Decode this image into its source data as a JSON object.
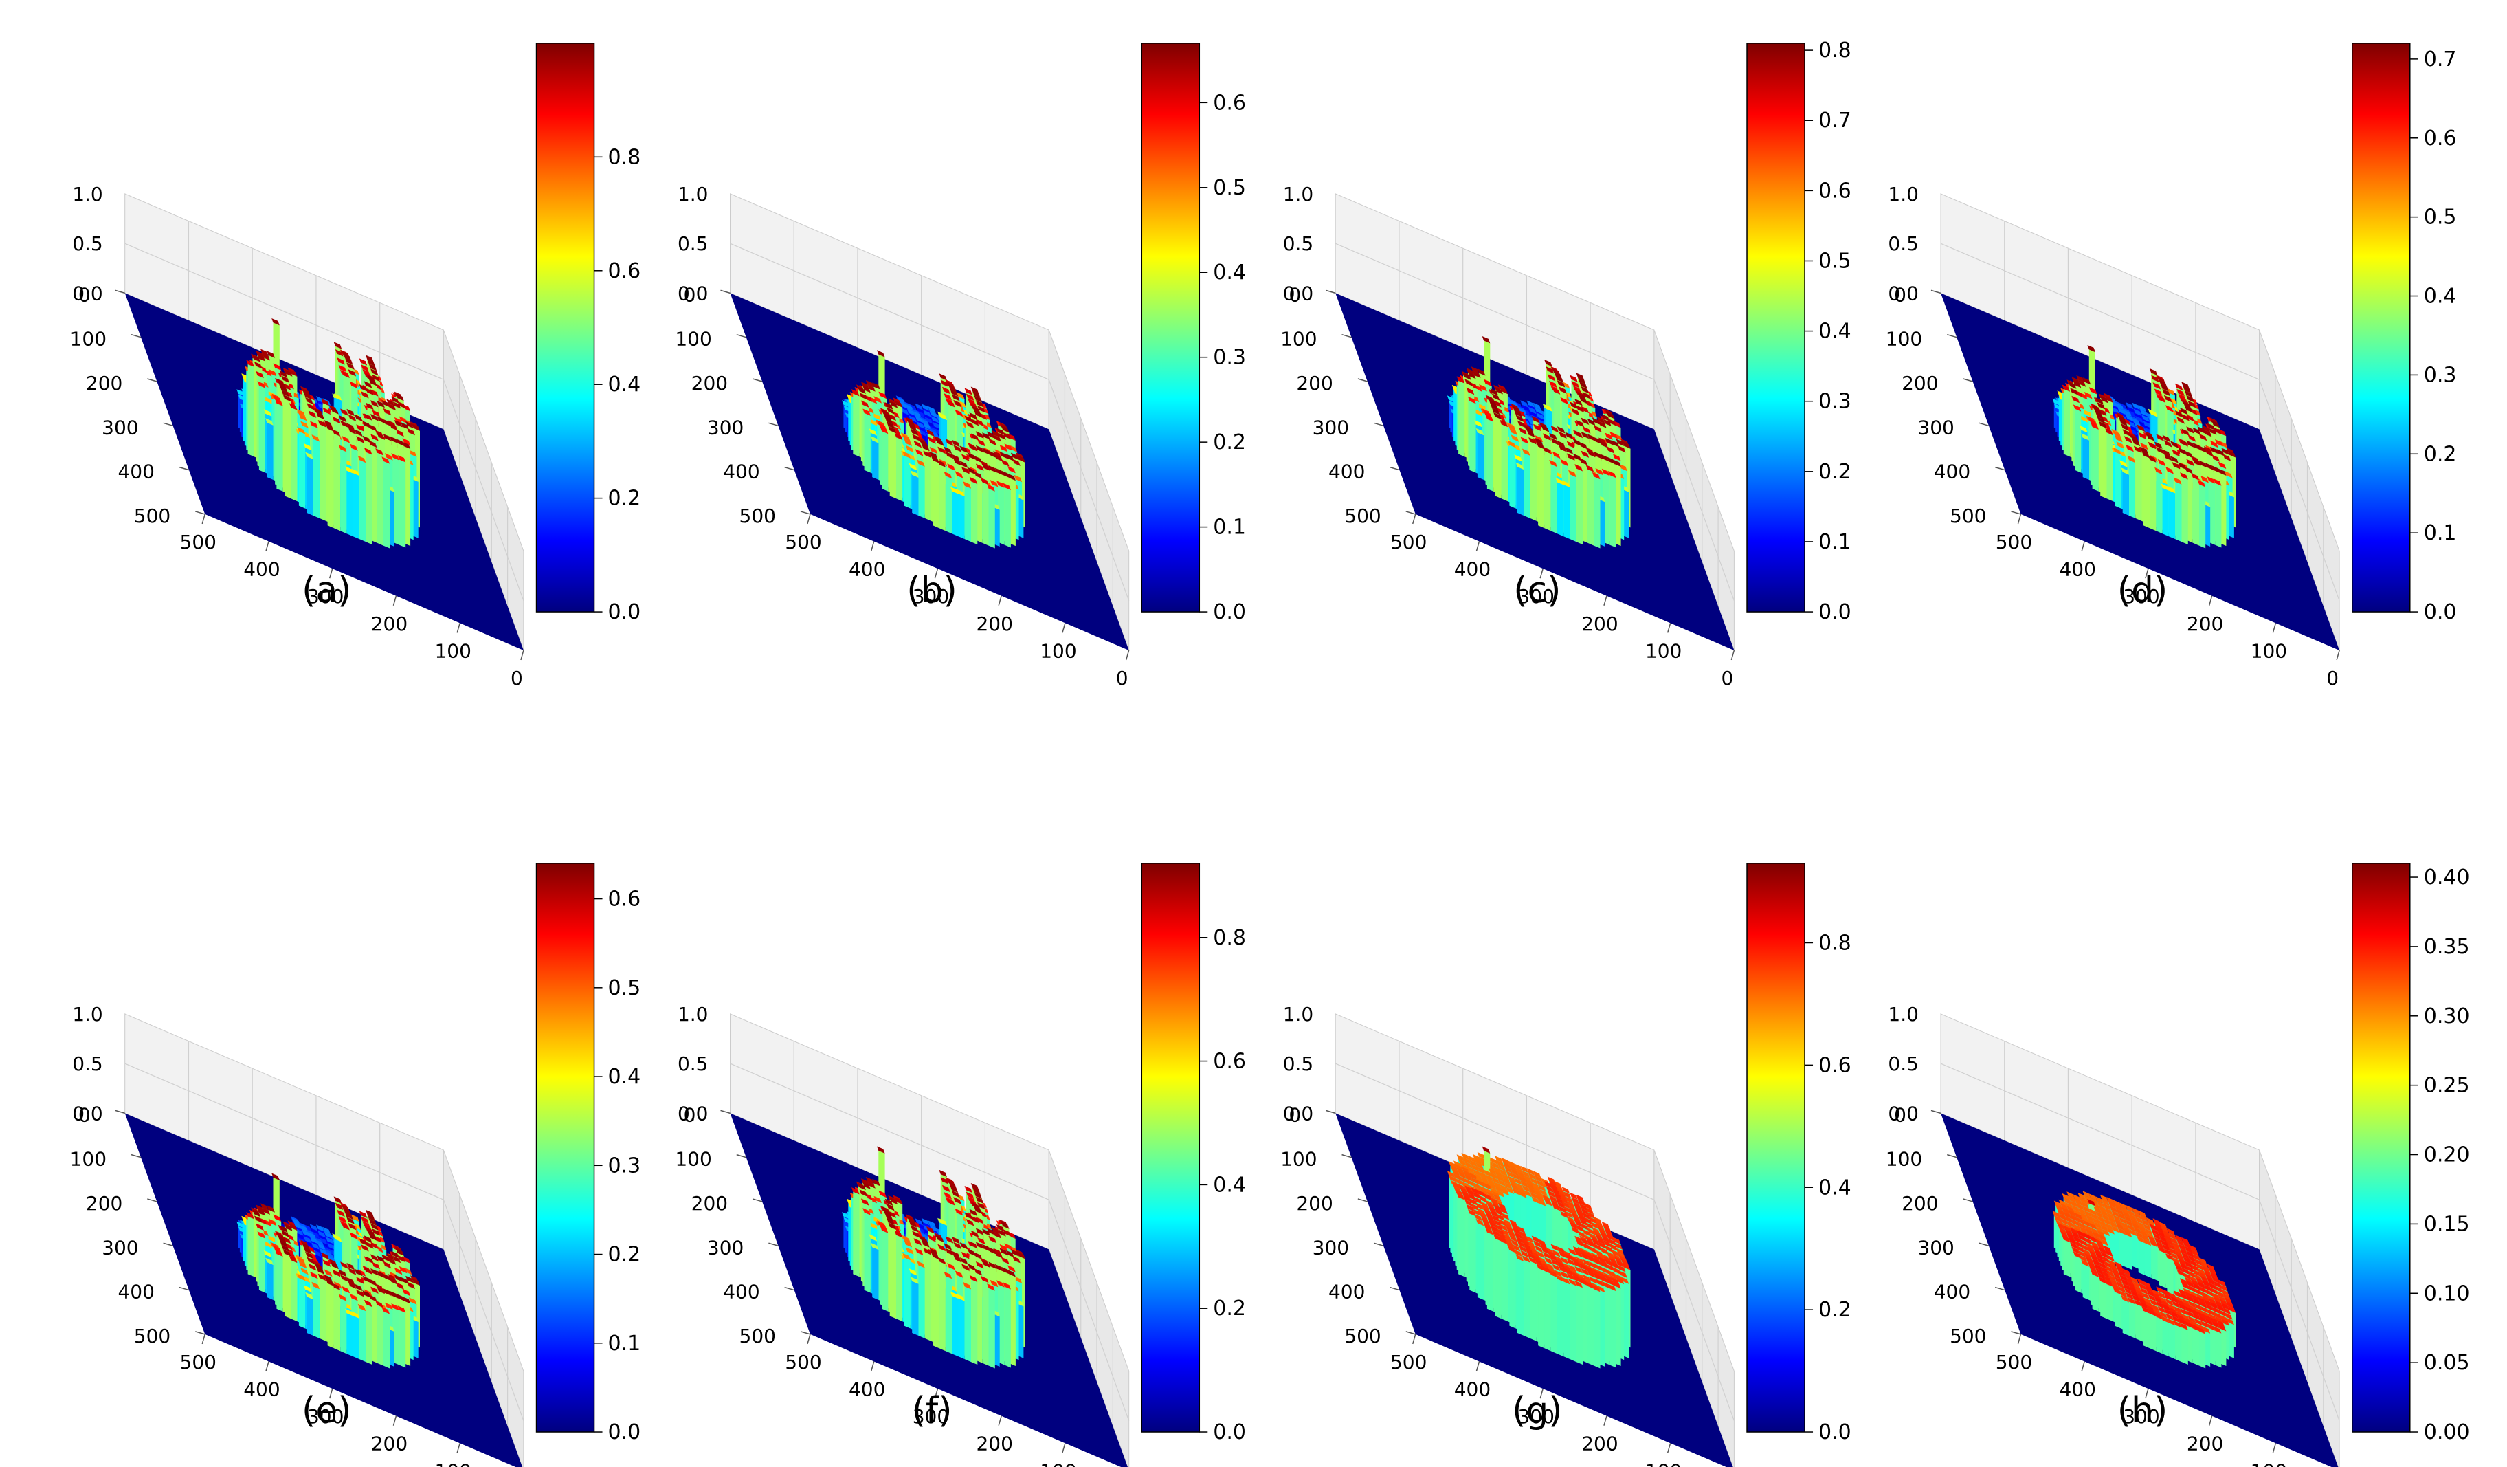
{
  "colormap": {
    "name": "jet",
    "stops": [
      "#00007f",
      "#0000ff",
      "#007fff",
      "#00ffff",
      "#7fff7f",
      "#ffff00",
      "#ff7f00",
      "#ff0000",
      "#7f0000"
    ]
  },
  "colors": {
    "floor": "#00007f",
    "pane": "#f2f2f2",
    "grid": "#d0d0d0"
  },
  "axis_ticks": {
    "z": [
      "0.0",
      "0.5",
      "1.0"
    ],
    "x": [
      "0",
      "100",
      "200",
      "300",
      "400",
      "500"
    ],
    "y": [
      "0",
      "100",
      "200",
      "300",
      "400",
      "500"
    ]
  },
  "chart_data": [
    {
      "panel": "a",
      "label": "(a)",
      "type": "surface3d",
      "row": 0,
      "col": 0,
      "xlim": [
        0,
        500
      ],
      "ylim": [
        0,
        500
      ],
      "zlim": [
        0.0,
        1.0
      ],
      "surface_max": 1.0,
      "surface_peak": 0.98,
      "plateau": false,
      "ring": true,
      "colorbar": {
        "min": 0.0,
        "max": 1.0,
        "ticks": [
          "0.0",
          "0.2",
          "0.4",
          "0.6",
          "0.8"
        ],
        "tick_values": [
          0.0,
          0.2,
          0.4,
          0.6,
          0.8
        ]
      }
    },
    {
      "panel": "b",
      "label": "(b)",
      "type": "surface3d",
      "row": 0,
      "col": 1,
      "xlim": [
        0,
        500
      ],
      "ylim": [
        0,
        500
      ],
      "zlim": [
        0.0,
        1.0
      ],
      "surface_max": 0.67,
      "surface_peak": 0.66,
      "plateau": false,
      "ring": true,
      "colorbar": {
        "min": 0.0,
        "max": 0.67,
        "ticks": [
          "0.0",
          "0.1",
          "0.2",
          "0.3",
          "0.4",
          "0.5",
          "0.6"
        ],
        "tick_values": [
          0.0,
          0.1,
          0.2,
          0.3,
          0.4,
          0.5,
          0.6
        ]
      }
    },
    {
      "panel": "c",
      "label": "(c)",
      "type": "surface3d",
      "row": 0,
      "col": 2,
      "xlim": [
        0,
        500
      ],
      "ylim": [
        0,
        500
      ],
      "zlim": [
        0.0,
        1.0
      ],
      "surface_max": 0.81,
      "surface_peak": 0.8,
      "plateau": false,
      "ring": true,
      "colorbar": {
        "min": 0.0,
        "max": 0.81,
        "ticks": [
          "0.0",
          "0.1",
          "0.2",
          "0.3",
          "0.4",
          "0.5",
          "0.6",
          "0.7",
          "0.8"
        ],
        "tick_values": [
          0.0,
          0.1,
          0.2,
          0.3,
          0.4,
          0.5,
          0.6,
          0.7,
          0.8
        ]
      }
    },
    {
      "panel": "d",
      "label": "(d)",
      "type": "surface3d",
      "row": 0,
      "col": 3,
      "xlim": [
        0,
        500
      ],
      "ylim": [
        0,
        500
      ],
      "zlim": [
        0.0,
        1.0
      ],
      "surface_max": 0.72,
      "surface_peak": 0.71,
      "plateau": false,
      "ring": true,
      "colorbar": {
        "min": 0.0,
        "max": 0.72,
        "ticks": [
          "0.0",
          "0.1",
          "0.2",
          "0.3",
          "0.4",
          "0.5",
          "0.6",
          "0.7"
        ],
        "tick_values": [
          0.0,
          0.1,
          0.2,
          0.3,
          0.4,
          0.5,
          0.6,
          0.7
        ]
      }
    },
    {
      "panel": "e",
      "label": "(e)",
      "type": "surface3d",
      "row": 1,
      "col": 0,
      "xlim": [
        0,
        500
      ],
      "ylim": [
        0,
        500
      ],
      "zlim": [
        0.0,
        1.0
      ],
      "surface_max": 0.64,
      "surface_peak": 0.63,
      "plateau": false,
      "ring": true,
      "colorbar": {
        "min": 0.0,
        "max": 0.64,
        "ticks": [
          "0.0",
          "0.1",
          "0.2",
          "0.3",
          "0.4",
          "0.5",
          "0.6"
        ],
        "tick_values": [
          0.0,
          0.1,
          0.2,
          0.3,
          0.4,
          0.5,
          0.6
        ]
      }
    },
    {
      "panel": "f",
      "label": "(f)",
      "type": "surface3d",
      "row": 1,
      "col": 1,
      "xlim": [
        0,
        500
      ],
      "ylim": [
        0,
        500
      ],
      "zlim": [
        0.0,
        1.0
      ],
      "surface_max": 0.92,
      "surface_peak": 0.9,
      "plateau": false,
      "ring": true,
      "colorbar": {
        "min": 0.0,
        "max": 0.92,
        "ticks": [
          "0.0",
          "0.2",
          "0.4",
          "0.6",
          "0.8"
        ],
        "tick_values": [
          0.0,
          0.2,
          0.4,
          0.6,
          0.8
        ]
      }
    },
    {
      "panel": "g",
      "label": "(g)",
      "type": "surface3d",
      "row": 1,
      "col": 2,
      "xlim": [
        0,
        500
      ],
      "ylim": [
        0,
        500
      ],
      "zlim": [
        0.0,
        1.0
      ],
      "surface_max": 0.93,
      "surface_peak": 0.9,
      "plateau": true,
      "plateau_level": 0.78,
      "ring": true,
      "colorbar": {
        "min": 0.0,
        "max": 0.93,
        "ticks": [
          "0.0",
          "0.2",
          "0.4",
          "0.6",
          "0.8"
        ],
        "tick_values": [
          0.0,
          0.2,
          0.4,
          0.6,
          0.8
        ]
      }
    },
    {
      "panel": "h",
      "label": "(h)",
      "type": "surface3d",
      "row": 1,
      "col": 3,
      "xlim": [
        0,
        500
      ],
      "ylim": [
        0,
        500
      ],
      "zlim": [
        0.0,
        1.0
      ],
      "surface_max": 0.41,
      "surface_peak": 0.37,
      "plateau": true,
      "plateau_level": 0.35,
      "ring": false,
      "colorbar": {
        "min": 0.0,
        "max": 0.41,
        "ticks": [
          "0.00",
          "0.05",
          "0.10",
          "0.15",
          "0.20",
          "0.25",
          "0.30",
          "0.35",
          "0.40"
        ],
        "tick_values": [
          0.0,
          0.05,
          0.1,
          0.15,
          0.2,
          0.25,
          0.3,
          0.35,
          0.4
        ]
      }
    }
  ]
}
